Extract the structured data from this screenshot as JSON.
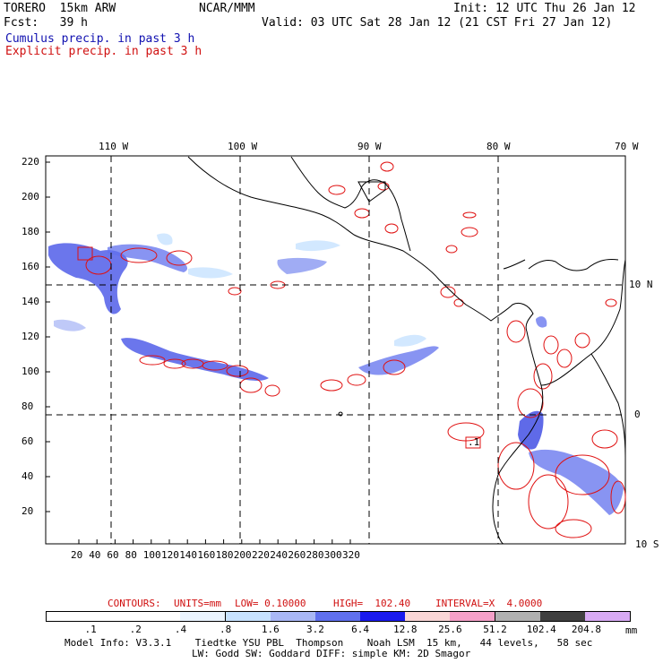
{
  "header": {
    "model": "TORERO  15km ARW",
    "org": "NCAR/MMM",
    "init": "Init: 12 UTC Thu 26 Jan 12",
    "fcst": "Fcst:   39 h",
    "valid": "Valid: 03 UTC Sat 28 Jan 12 (21 CST Fri 27 Jan 12)",
    "line_blue": "Cumulus precip. in past 3 h",
    "line_red": "Explicit precip. in past 3 h"
  },
  "map": {
    "lon_labels": [
      "110 W",
      "100 W",
      "90 W",
      "80 W",
      "70 W"
    ],
    "lat_labels": [
      "10 N",
      "0",
      "10 S"
    ],
    "y_ticks": [
      "220",
      "200",
      "180",
      "160",
      "140",
      "120",
      "100",
      "80",
      "60",
      "40",
      "20"
    ],
    "x_ticks": [
      "20",
      "40",
      "60",
      "80",
      "100",
      "120",
      "140",
      "160",
      "180",
      "200",
      "220",
      "240",
      "260",
      "280",
      "300",
      "320"
    ],
    "contour_label": ".1"
  },
  "contour_info": {
    "label": "CONTOURS:",
    "units": "UNITS=mm",
    "low": "LOW= 0.10000",
    "high": "HIGH=  102.40",
    "interval": "INTERVAL=X  4.0000"
  },
  "legend": {
    "values": [
      ".1",
      ".2",
      ".4",
      ".8",
      "1.6",
      "3.2",
      "6.4",
      "12.8",
      "25.6",
      "51.2",
      "102.4",
      "204.8"
    ],
    "unit": "mm",
    "colors": [
      "#ffffff",
      "#ffffff",
      "#ffffff",
      "#eaf4ff",
      "#c7e2ff",
      "#a9b7f5",
      "#6070ee",
      "#1a1aee",
      "#fad6d6",
      "#f5a0c8",
      "#b0b0b0",
      "#404040",
      "#d8aaf4"
    ]
  },
  "footer": {
    "line1": "Model Info: V3.3.1    Tiedtke YSU PBL  Thompson    Noah LSM  15 km,   44 levels,   58 sec",
    "line2": "LW: Godd SW: Goddard DIFF: simple KM: 2D Smagor"
  }
}
